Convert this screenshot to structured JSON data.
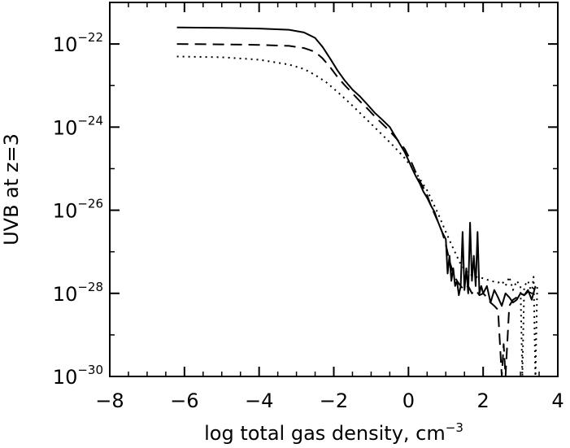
{
  "chart_data": {
    "type": "line",
    "title": "",
    "xlabel": "log total gas density, cm",
    "xlabel_exponent": "−3",
    "ylabel": "UVB at z=3",
    "xlim": [
      -8,
      4
    ],
    "ylim": [
      1e-30,
      1e-21
    ],
    "yscale": "log",
    "grid": false,
    "x_ticks": [
      -8,
      -6,
      -4,
      -2,
      0,
      2,
      4
    ],
    "x_tick_labels": [
      "−8",
      "−6",
      "−4",
      "−2",
      "0",
      "2",
      "4"
    ],
    "y_ticks": [
      1e-22,
      1e-24,
      1e-26,
      1e-28,
      1e-30
    ],
    "y_tick_labels": [
      {
        "base": "10",
        "exp": "−22"
      },
      {
        "base": "10",
        "exp": "−24"
      },
      {
        "base": "10",
        "exp": "−26"
      },
      {
        "base": "10",
        "exp": "−28"
      },
      {
        "base": "10",
        "exp": "−30"
      }
    ],
    "series": [
      {
        "style": "solid",
        "x": [
          -6.2,
          -5.0,
          -4.0,
          -3.2,
          -2.8,
          -2.5,
          -2.3,
          -2.1,
          -1.9,
          -1.7,
          -1.5,
          -1.3,
          -1.1,
          -0.9,
          -0.7,
          -0.5,
          -0.4,
          -0.3,
          -0.2,
          -0.1,
          0.0,
          0.1,
          0.2,
          0.3,
          0.4,
          0.5,
          0.6,
          0.7,
          0.8,
          0.9,
          1.0,
          1.05,
          1.1,
          1.15,
          1.2,
          1.25,
          1.3,
          1.35,
          1.4,
          1.45,
          1.5,
          1.55,
          1.6,
          1.65,
          1.7,
          1.75,
          1.8,
          1.85,
          1.9,
          1.95,
          2.0,
          2.1,
          2.2,
          2.3,
          2.4,
          2.5,
          2.6,
          2.7,
          2.8,
          2.9,
          3.0,
          3.1,
          3.2,
          3.3,
          3.4
        ],
        "y": [
          2.5e-22,
          2.45e-22,
          2.35e-22,
          2.2e-22,
          1.9e-22,
          1.4e-22,
          8.5e-23,
          4.5e-23,
          2.3e-23,
          1.3e-23,
          8e-24,
          5.5e-24,
          3.5e-24,
          2.2e-24,
          1.5e-24,
          1e-24,
          7e-25,
          5e-25,
          3.5e-25,
          2.5e-25,
          1.6e-25,
          1e-25,
          6.5e-26,
          4.5e-26,
          2.8e-26,
          2e-26,
          1.3e-26,
          9e-27,
          5e-27,
          3e-27,
          2e-27,
          3e-28,
          8e-28,
          2e-28,
          4e-28,
          1.5e-28,
          2e-28,
          9e-29,
          1.5e-28,
          3e-27,
          1.2e-28,
          4e-28,
          1e-28,
          5e-27,
          2e-28,
          8e-28,
          1.5e-28,
          3e-27,
          1e-28,
          1.5e-28,
          1e-28,
          1.5e-28,
          6e-29,
          1.2e-28,
          8e-29,
          5e-29,
          1e-28,
          8e-29,
          6e-29,
          7e-29,
          1e-28,
          9e-29,
          1.2e-28,
          7e-29,
          1.5e-28
        ]
      },
      {
        "style": "dashed",
        "x": [
          -6.2,
          -5.0,
          -4.0,
          -3.2,
          -2.8,
          -2.5,
          -2.3,
          -2.1,
          -1.9,
          -1.7,
          -1.5,
          -1.3,
          -1.1,
          -0.9,
          -0.7,
          -0.5,
          -0.3,
          -0.1,
          0.0,
          0.1,
          0.2,
          0.3,
          0.4,
          0.5,
          0.6,
          0.7,
          0.8,
          0.9,
          1.0,
          1.1,
          1.2,
          1.3,
          1.4,
          1.5,
          1.6,
          1.7,
          1.8,
          1.9,
          2.0,
          2.1,
          2.2,
          2.3,
          2.4,
          2.5,
          2.55,
          2.6,
          2.7,
          2.8,
          2.9,
          3.0,
          3.1,
          3.2,
          3.3,
          3.4
        ],
        "y": [
          1e-22,
          9.8e-23,
          9.5e-23,
          9e-23,
          8e-23,
          6.5e-23,
          4.5e-23,
          2.8e-23,
          1.6e-23,
          1e-23,
          6.5e-24,
          4.2e-24,
          2.8e-24,
          1.8e-24,
          1.2e-24,
          8e-25,
          5e-25,
          3e-25,
          2e-25,
          1.3e-25,
          8e-26,
          5e-26,
          3.5e-26,
          2.3e-26,
          1.3e-26,
          8e-27,
          5e-27,
          3e-27,
          1.5e-27,
          6e-28,
          3e-28,
          2e-28,
          1.5e-28,
          1.2e-28,
          1.5e-28,
          1e-28,
          1.2e-28,
          9e-29,
          1e-28,
          8e-29,
          6e-29,
          5e-29,
          4e-29,
          1e-30,
          6e-30,
          1e-30,
          5e-29,
          7e-29,
          8e-29,
          1e-28,
          9e-29,
          1.1e-28,
          1e-28,
          1.2e-28
        ]
      },
      {
        "style": "dotted",
        "x": [
          -6.2,
          -5.0,
          -4.0,
          -3.2,
          -2.8,
          -2.5,
          -2.2,
          -1.9,
          -1.6,
          -1.3,
          -1.0,
          -0.7,
          -0.4,
          -0.1,
          0.2,
          0.5,
          0.8,
          1.0,
          1.2,
          1.4,
          1.6,
          1.8,
          2.0,
          2.2,
          2.4,
          2.5,
          2.6,
          2.7,
          2.8,
          2.9,
          3.0,
          3.05,
          3.1,
          3.2,
          3.3,
          3.35,
          3.4,
          3.45
        ],
        "y": [
          5e-23,
          4.8e-23,
          4.2e-23,
          3.2e-23,
          2.5e-23,
          1.8e-23,
          1.2e-23,
          7e-24,
          4e-24,
          2.2e-24,
          1.2e-24,
          6.5e-25,
          3.5e-25,
          1.8e-25,
          8e-26,
          3e-26,
          8e-27,
          3e-27,
          1.2e-27,
          5e-28,
          3e-28,
          2.5e-28,
          2.3e-28,
          2e-28,
          1.8e-28,
          2e-28,
          1.5e-28,
          2.5e-28,
          1.2e-28,
          2e-28,
          1.5e-28,
          1e-30,
          1.5e-28,
          2e-28,
          1e-28,
          2.5e-28,
          1e-30,
          1.5e-28
        ]
      }
    ]
  }
}
